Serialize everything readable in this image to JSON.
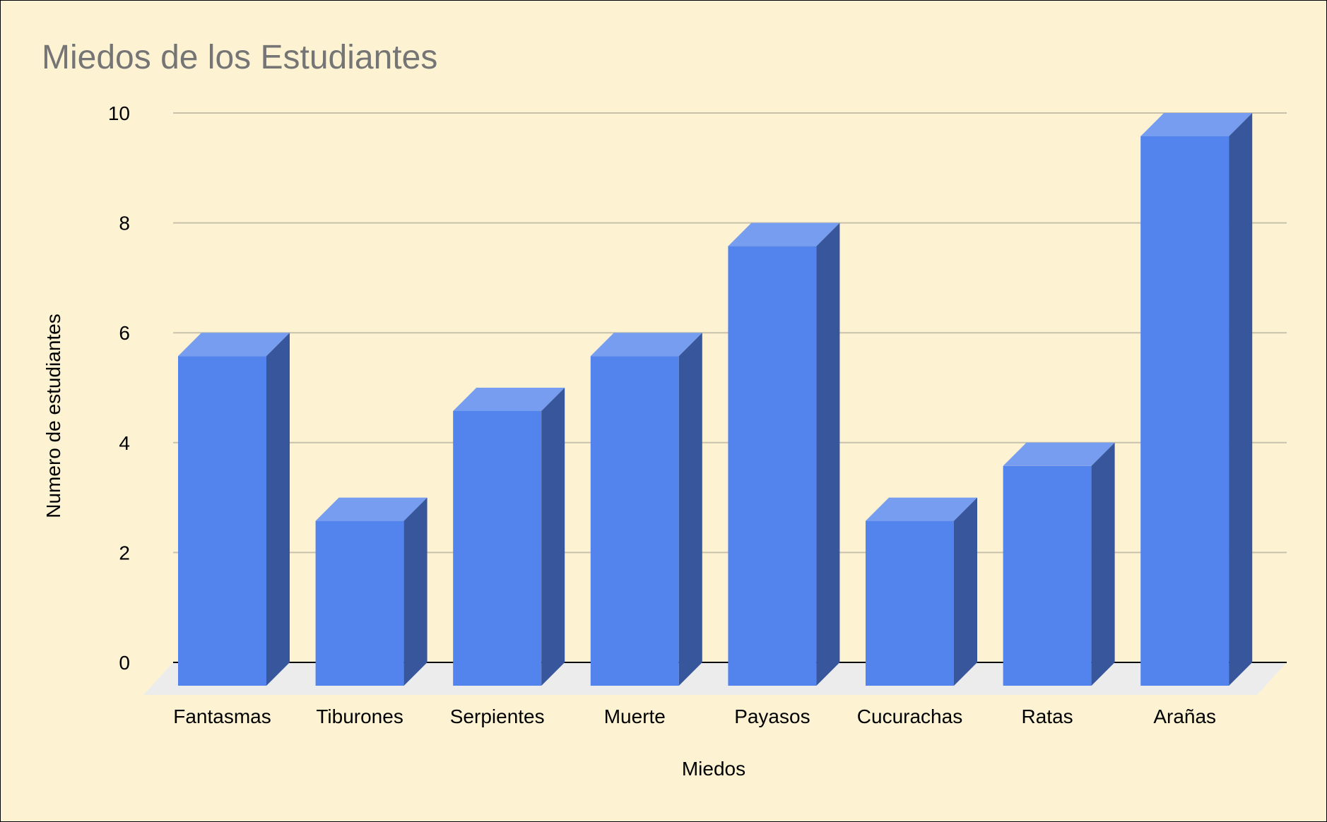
{
  "chart_data": {
    "type": "bar",
    "style": "3d",
    "title": "Miedos de los Estudiantes",
    "xlabel": "Miedos",
    "ylabel": "Numero de estudiantes",
    "categories": [
      "Fantasmas",
      "Tiburones",
      "Serpientes",
      "Muerte",
      "Payasos",
      "Cucurachas",
      "Ratas",
      "Arañas"
    ],
    "series": [
      {
        "values": [
          6,
          3,
          5,
          6,
          8,
          3,
          4,
          10
        ]
      }
    ],
    "ylim": [
      0,
      10
    ],
    "yticks": [
      "0",
      "2",
      "4",
      "6",
      "8",
      "10"
    ],
    "grid": true,
    "legend": "none",
    "colors": {
      "background": "#fdf3d3",
      "bar_front": "#5383ec",
      "bar_top": "#769df0",
      "bar_side": "#37569b",
      "gridline": "#c8c2ac",
      "floor": "#ececec",
      "baseline": "#000000",
      "title": "#757575"
    }
  }
}
